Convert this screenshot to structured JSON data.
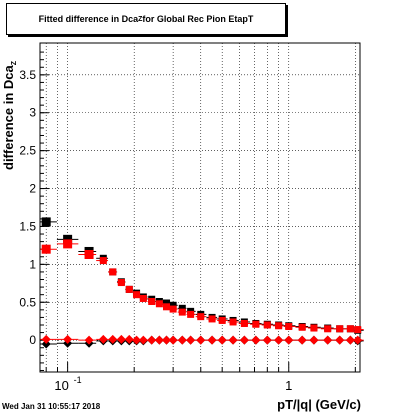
{
  "title": {
    "main": "Fitted difference in Dca",
    "sub": "Z",
    "rest": " for Global Rec Pion EtapT"
  },
  "ylabel": {
    "main": "difference in Dca",
    "sub": "Z"
  },
  "xlabel": "pT/|q| (GeV/c)",
  "datestamp": "Wed Jan 31 10:55:17 2018",
  "colors": {
    "black_series": "#000000",
    "red_series": "#ff0000",
    "grid": "#000000"
  },
  "chart_data": {
    "type": "scatter",
    "xscale": "log",
    "xlim": [
      0.075,
      2.1
    ],
    "ylim": [
      -0.42,
      3.92
    ],
    "grid": true,
    "yticks": [
      0,
      0.5,
      1,
      1.5,
      2,
      2.5,
      3,
      3.5
    ],
    "ytick_labels": [
      "0",
      "0.5",
      "1",
      "1.5",
      "2",
      "2.5",
      "3",
      "3.5"
    ],
    "xticks_major": [
      0.1,
      1
    ],
    "xtick_labels": [
      "10^-1",
      "1"
    ],
    "series": [
      {
        "color": "black",
        "marker": "square",
        "points": [
          [
            0.08,
            1.56
          ],
          [
            0.1,
            1.33
          ],
          [
            0.125,
            1.17
          ],
          [
            0.145,
            1.08
          ],
          [
            0.16,
            0.9
          ],
          [
            0.175,
            0.77
          ],
          [
            0.19,
            0.67
          ],
          [
            0.205,
            0.62
          ],
          [
            0.22,
            0.57
          ],
          [
            0.24,
            0.54
          ],
          [
            0.26,
            0.51
          ],
          [
            0.28,
            0.49
          ],
          [
            0.3,
            0.46
          ],
          [
            0.33,
            0.42
          ],
          [
            0.36,
            0.38
          ],
          [
            0.4,
            0.34
          ],
          [
            0.45,
            0.3
          ],
          [
            0.5,
            0.28
          ],
          [
            0.56,
            0.26
          ],
          [
            0.63,
            0.24
          ],
          [
            0.71,
            0.22
          ],
          [
            0.8,
            0.21
          ],
          [
            0.9,
            0.2
          ],
          [
            1.0,
            0.19
          ],
          [
            1.15,
            0.18
          ],
          [
            1.3,
            0.17
          ],
          [
            1.5,
            0.16
          ],
          [
            1.7,
            0.15
          ],
          [
            1.9,
            0.15
          ],
          [
            2.05,
            0.13
          ]
        ]
      },
      {
        "color": "red",
        "marker": "square",
        "points": [
          [
            0.08,
            1.2
          ],
          [
            0.1,
            1.27
          ],
          [
            0.125,
            1.13
          ],
          [
            0.145,
            1.05
          ],
          [
            0.16,
            0.9
          ],
          [
            0.175,
            0.76
          ],
          [
            0.19,
            0.67
          ],
          [
            0.205,
            0.6
          ],
          [
            0.22,
            0.55
          ],
          [
            0.24,
            0.51
          ],
          [
            0.26,
            0.48
          ],
          [
            0.28,
            0.44
          ],
          [
            0.3,
            0.41
          ],
          [
            0.33,
            0.37
          ],
          [
            0.36,
            0.34
          ],
          [
            0.4,
            0.31
          ],
          [
            0.45,
            0.28
          ],
          [
            0.5,
            0.26
          ],
          [
            0.56,
            0.24
          ],
          [
            0.63,
            0.22
          ],
          [
            0.71,
            0.21
          ],
          [
            0.8,
            0.2
          ],
          [
            0.9,
            0.19
          ],
          [
            1.0,
            0.18
          ],
          [
            1.15,
            0.17
          ],
          [
            1.3,
            0.16
          ],
          [
            1.5,
            0.15
          ],
          [
            1.7,
            0.15
          ],
          [
            1.9,
            0.15
          ],
          [
            2.05,
            0.14
          ]
        ]
      },
      {
        "color": "black",
        "marker": "diamond",
        "points": [
          [
            0.08,
            -0.05
          ],
          [
            0.1,
            -0.04
          ],
          [
            0.125,
            -0.04
          ],
          [
            0.145,
            -0.01
          ],
          [
            0.16,
            -0.01
          ],
          [
            0.175,
            -0.01
          ],
          [
            0.19,
            -0.01
          ],
          [
            0.205,
            -0.01
          ],
          [
            0.22,
            -0.01
          ],
          [
            0.24,
            0.0
          ],
          [
            0.26,
            0.0
          ],
          [
            0.28,
            0.0
          ],
          [
            0.3,
            0.0
          ],
          [
            0.33,
            0.0
          ],
          [
            0.36,
            0.0
          ],
          [
            0.4,
            0.0
          ],
          [
            0.45,
            0.0
          ],
          [
            0.5,
            0.0
          ],
          [
            0.56,
            0.0
          ],
          [
            0.63,
            0.0
          ],
          [
            0.71,
            0.0
          ],
          [
            0.8,
            0.0
          ],
          [
            0.9,
            0.0
          ],
          [
            1.0,
            0.0
          ],
          [
            1.15,
            0.0
          ],
          [
            1.3,
            0.0
          ],
          [
            1.5,
            0.0
          ],
          [
            1.7,
            0.0
          ],
          [
            1.9,
            0.0
          ],
          [
            2.05,
            -0.01
          ]
        ]
      },
      {
        "color": "red",
        "marker": "diamond",
        "points": [
          [
            0.08,
            0.01
          ],
          [
            0.1,
            0.01
          ],
          [
            0.125,
            0.0
          ],
          [
            0.145,
            0.01
          ],
          [
            0.16,
            0.01
          ],
          [
            0.175,
            0.01
          ],
          [
            0.19,
            0.01
          ],
          [
            0.205,
            0.0
          ],
          [
            0.22,
            0.0
          ],
          [
            0.24,
            0.0
          ],
          [
            0.26,
            0.0
          ],
          [
            0.28,
            0.0
          ],
          [
            0.3,
            0.0
          ],
          [
            0.33,
            0.0
          ],
          [
            0.36,
            0.0
          ],
          [
            0.4,
            0.0
          ],
          [
            0.45,
            0.0
          ],
          [
            0.5,
            0.0
          ],
          [
            0.56,
            0.0
          ],
          [
            0.63,
            0.0
          ],
          [
            0.71,
            0.0
          ],
          [
            0.8,
            0.0
          ],
          [
            0.9,
            0.0
          ],
          [
            1.0,
            0.0
          ],
          [
            1.15,
            0.0
          ],
          [
            1.3,
            0.0
          ],
          [
            1.5,
            0.0
          ],
          [
            1.7,
            0.0
          ],
          [
            1.9,
            0.0
          ],
          [
            2.05,
            0.0
          ]
        ]
      }
    ]
  }
}
